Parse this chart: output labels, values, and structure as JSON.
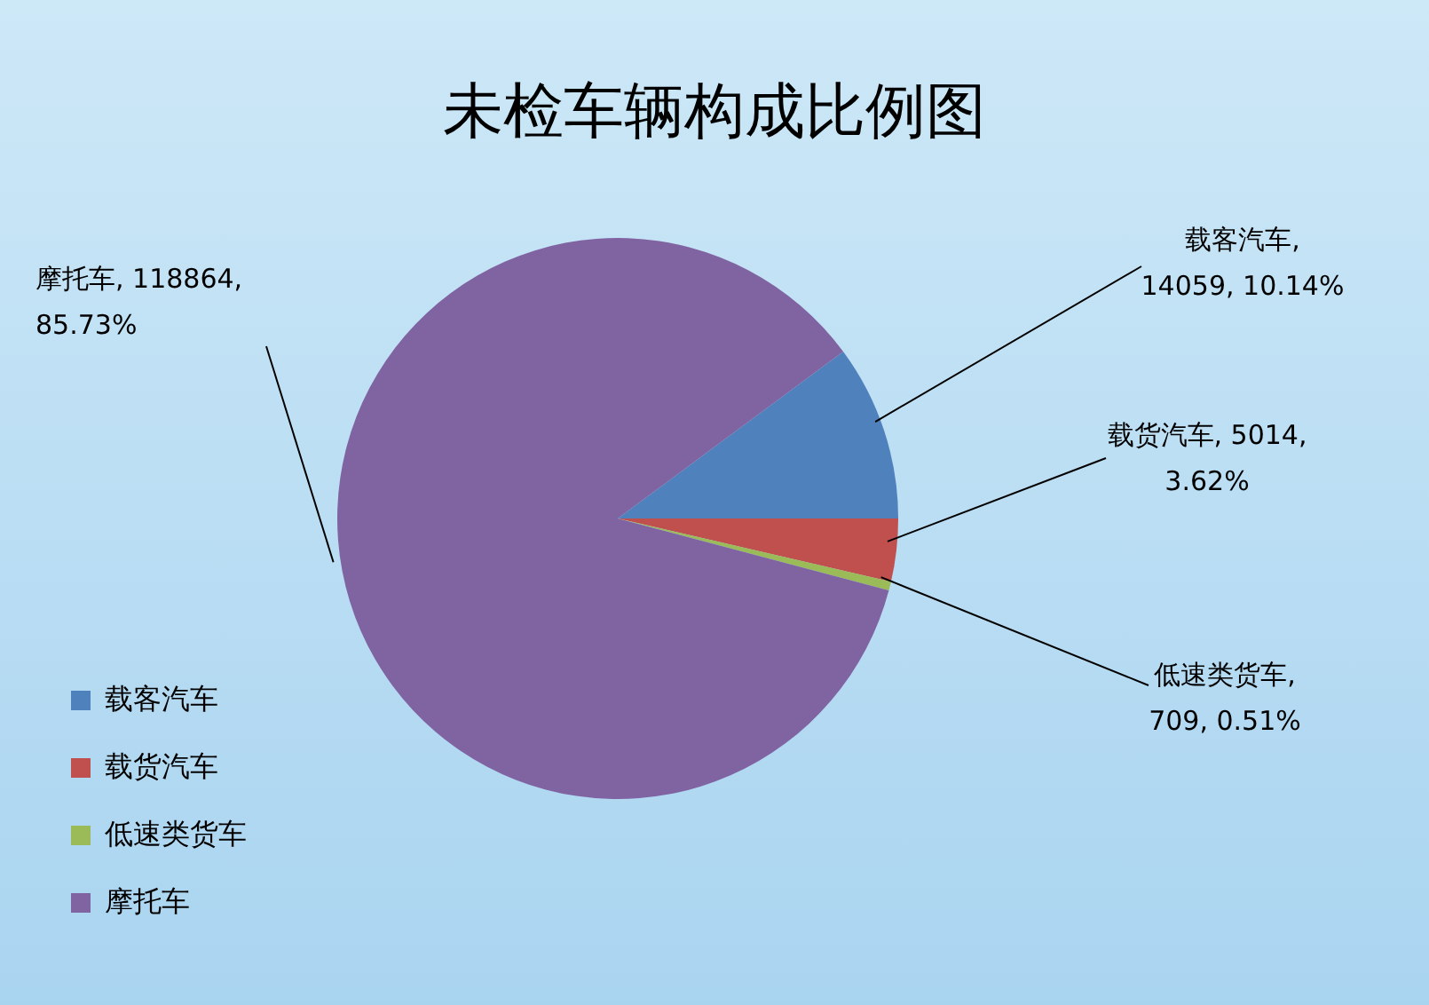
{
  "chart_data": {
    "type": "pie",
    "title": "未检车辆构成比例图",
    "categories": [
      "载客汽车",
      "载货汽车",
      "低速类货车",
      "摩托车"
    ],
    "values": [
      14059,
      5014,
      709,
      118864
    ],
    "colors": [
      "#4f81bd",
      "#c0504d",
      "#9bbb59",
      "#8064a2"
    ],
    "value_labels": [
      "载客汽车, 14059, 10.14%",
      "载货汽车, 5014, 3.62%",
      "低速类货车, 709, 0.51%",
      "摩托车, 118864, 85.73%"
    ],
    "legend": "left"
  }
}
